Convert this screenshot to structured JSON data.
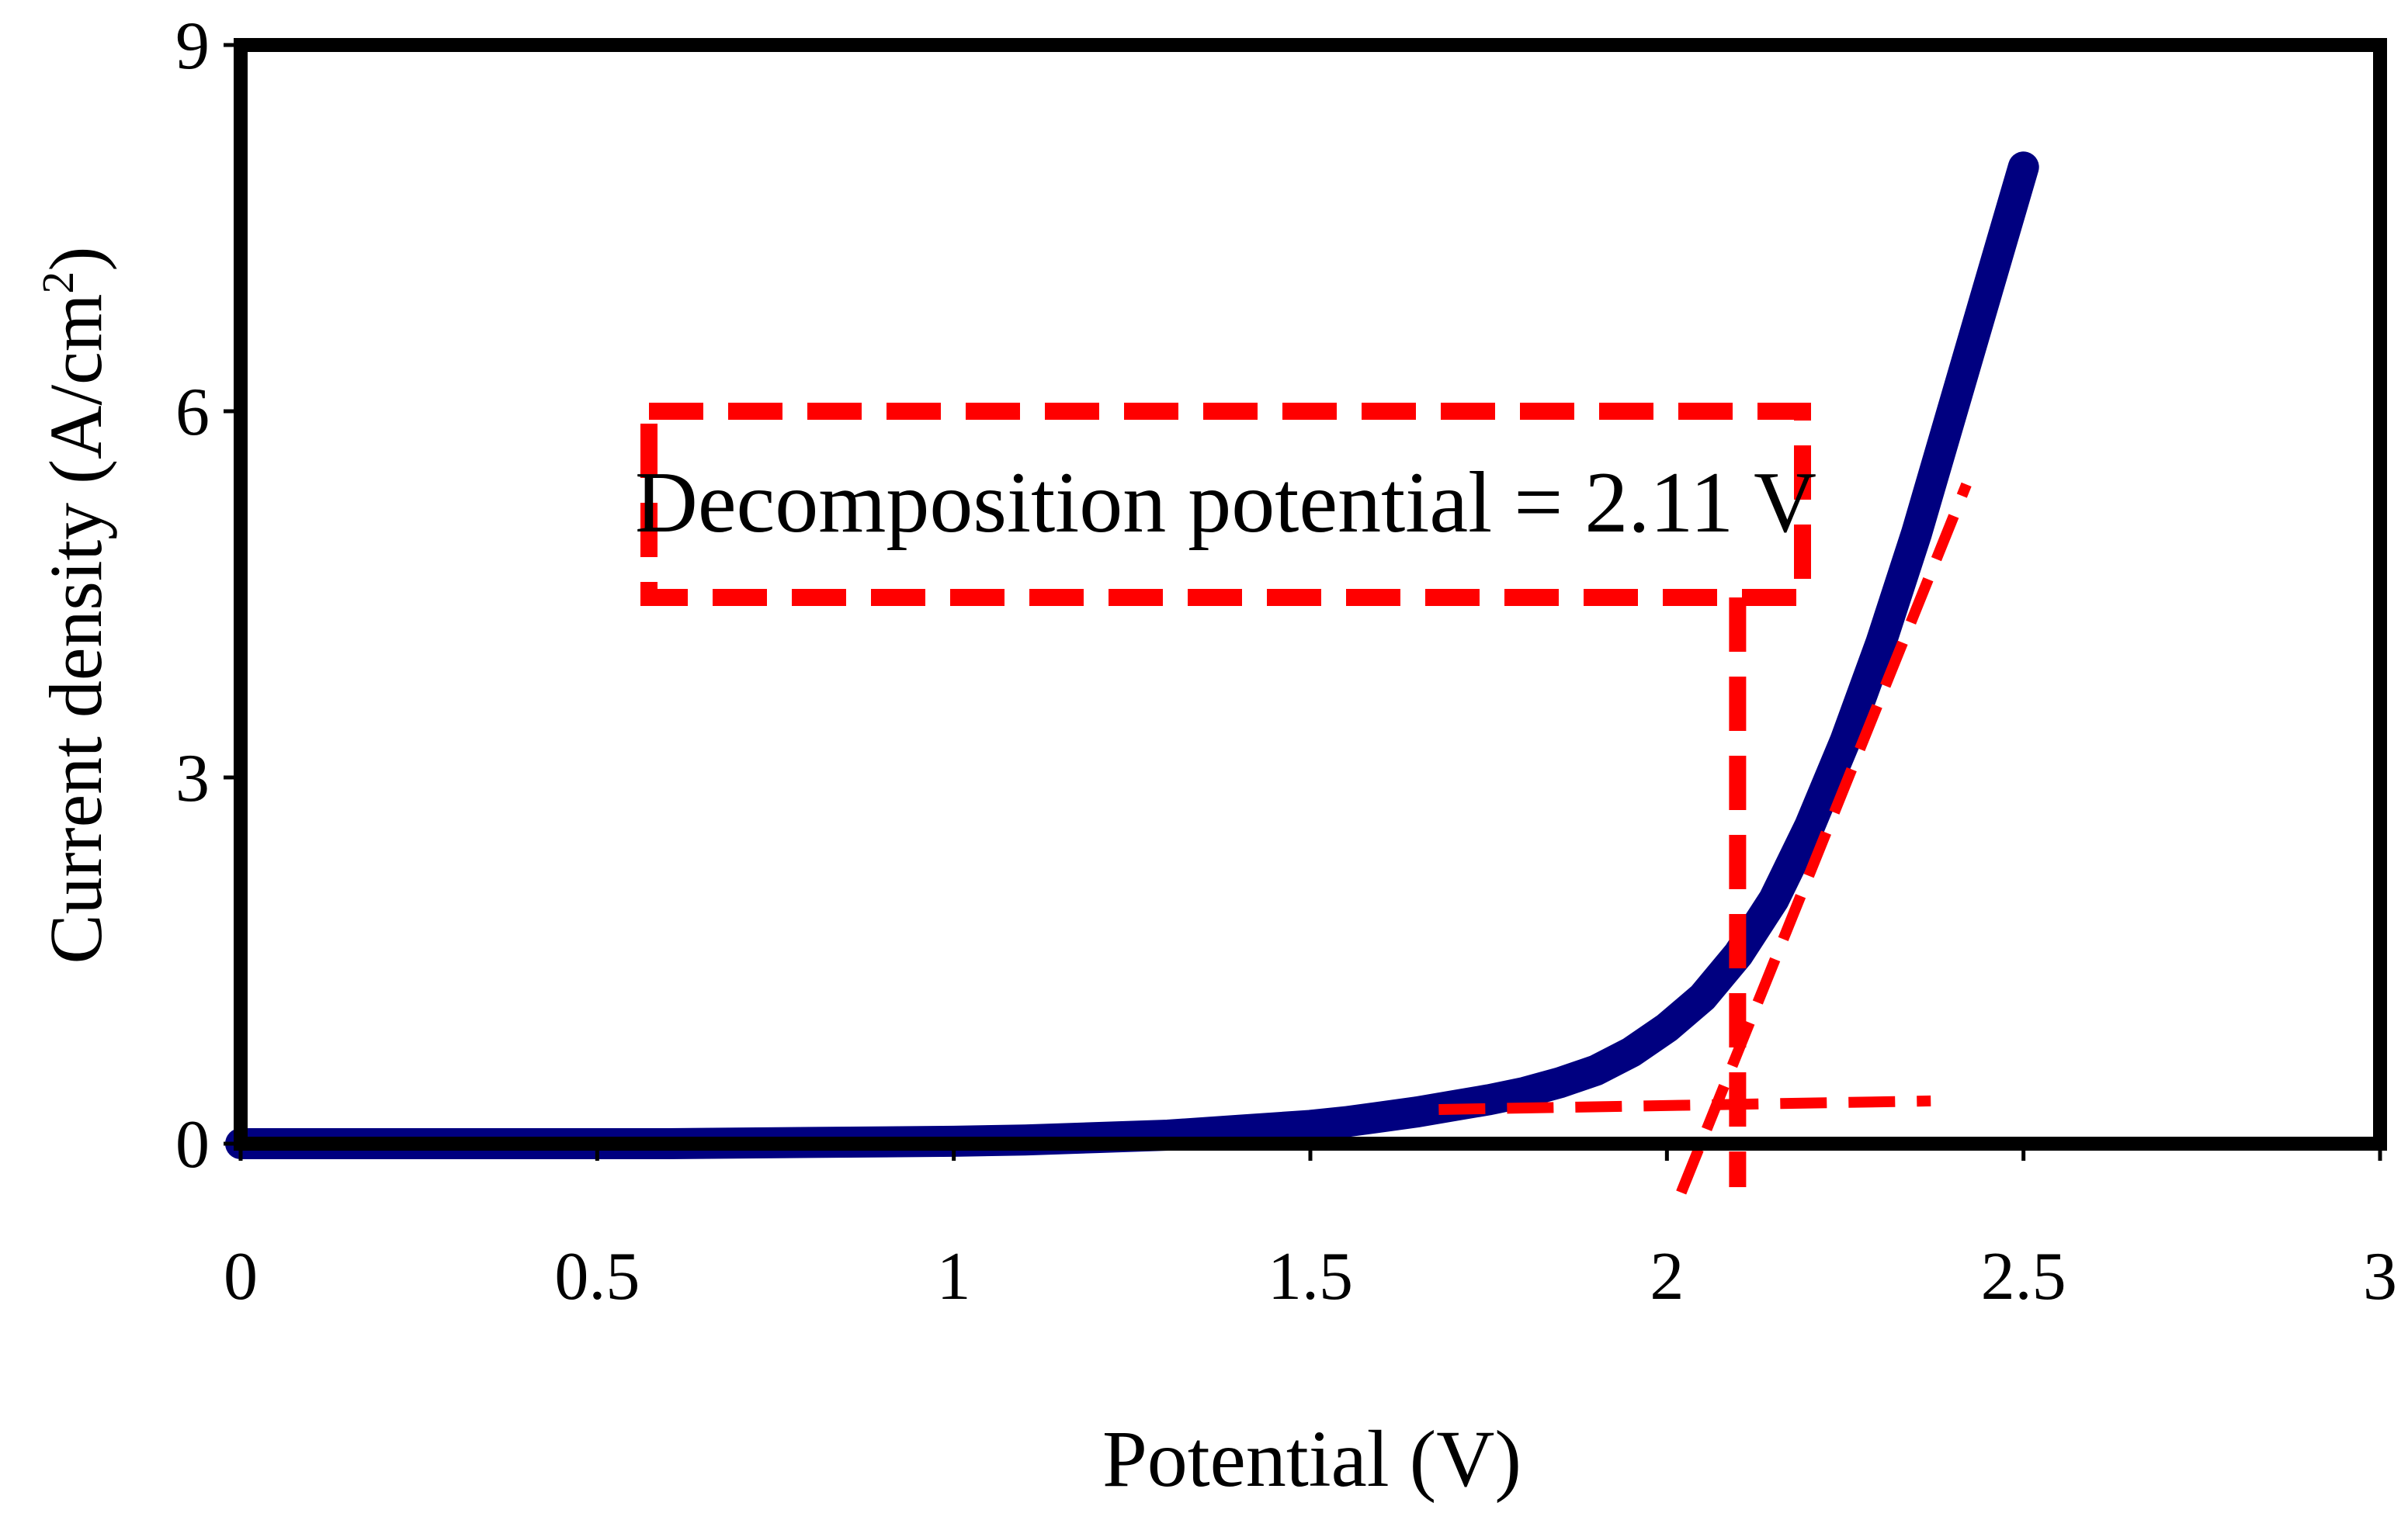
{
  "chart_data": {
    "type": "line",
    "title": "",
    "xlabel": "Potential (V)",
    "ylabel_main": "Current density (A/cm",
    "ylabel_sup": "2",
    "ylabel_close": ")",
    "xlim": [
      0,
      3
    ],
    "ylim": [
      0,
      9
    ],
    "x_ticks": [
      0,
      0.5,
      1,
      1.5,
      2,
      2.5,
      3
    ],
    "x_tick_labels": [
      "0",
      "0.5",
      "1",
      "1.5",
      "2",
      "2.5",
      "3"
    ],
    "y_ticks": [
      0,
      3,
      6,
      9
    ],
    "y_tick_labels": [
      "0",
      "3",
      "6",
      "9"
    ],
    "grid": false,
    "series": [
      {
        "name": "Current density",
        "color": "#000080",
        "x": [
          0,
          0.2,
          0.4,
          0.6,
          0.8,
          1.0,
          1.1,
          1.2,
          1.3,
          1.4,
          1.5,
          1.55,
          1.6,
          1.65,
          1.7,
          1.75,
          1.8,
          1.85,
          1.9,
          1.95,
          2.0,
          2.05,
          2.1,
          2.15,
          2.2,
          2.25,
          2.3,
          2.35,
          2.4,
          2.45,
          2.5
        ],
        "y": [
          0,
          0,
          0,
          0,
          0.01,
          0.02,
          0.03,
          0.05,
          0.07,
          0.11,
          0.15,
          0.18,
          0.22,
          0.26,
          0.31,
          0.36,
          0.42,
          0.5,
          0.6,
          0.75,
          0.95,
          1.2,
          1.55,
          2.0,
          2.6,
          3.3,
          4.1,
          5.0,
          6.0,
          7.0,
          8.0
        ]
      }
    ],
    "annotations": {
      "text": "Decomposition potential = 2.11 V",
      "decomposition_potential": 2.11,
      "color": "#ff0000",
      "baseline_tangent": {
        "x": [
          1.68,
          2.37
        ],
        "y": [
          0.28,
          0.35
        ]
      },
      "steep_tangent": {
        "x": [
          2.02,
          2.42
        ],
        "y": [
          -0.4,
          5.4
        ]
      }
    }
  }
}
